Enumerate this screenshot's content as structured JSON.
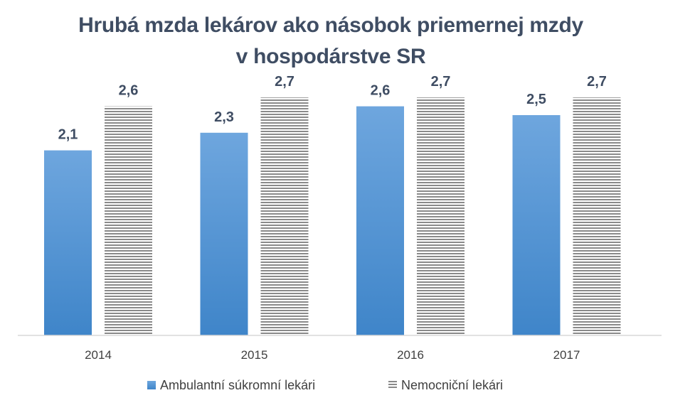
{
  "chart_data": {
    "type": "bar",
    "title": "Hrubá mzda lekárov ako násobok priemernej mzdy v hospodárstve SR",
    "title_lines": [
      "Hrubá mzda lekárov ako násobok priemernej mzdy",
      "v hospodárstve SR"
    ],
    "categories": [
      "2014",
      "2015",
      "2016",
      "2017"
    ],
    "series": [
      {
        "name": "Ambulantní súkromní lekári",
        "values": [
          2.1,
          2.3,
          2.6,
          2.5
        ],
        "labels": [
          "2,1",
          "2,3",
          "2,6",
          "2,5"
        ],
        "color": "#5b9bd5",
        "pattern": "solid-gradient"
      },
      {
        "name": "Nemocniční lekári",
        "values": [
          2.6,
          2.7,
          2.7,
          2.7
        ],
        "labels": [
          "2,6",
          "2,7",
          "2,7",
          "2,7"
        ],
        "color": "#7f7f7f",
        "pattern": "horizontal-stripes"
      }
    ],
    "ylim": [
      0,
      2.75
    ],
    "xlabel": "",
    "ylabel": "",
    "grid": false,
    "legend": "bottom"
  }
}
